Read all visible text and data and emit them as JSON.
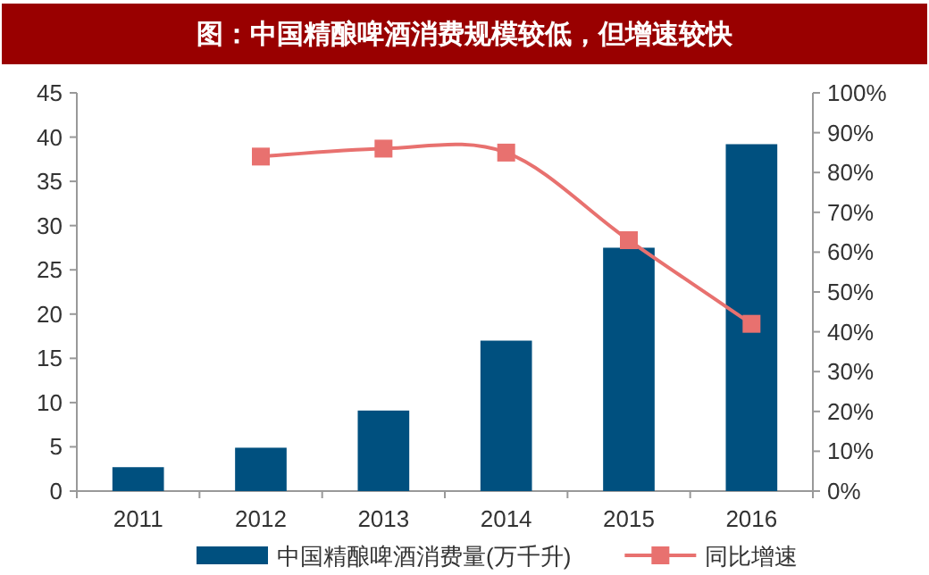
{
  "chart_data": {
    "type": "bar",
    "title": "图：中国精酿啤酒消费规模较低，但增速较快",
    "categories": [
      "2011",
      "2012",
      "2013",
      "2014",
      "2015",
      "2016"
    ],
    "series": [
      {
        "name": "中国精酿啤酒消费量(万千升)",
        "color": "#00507f",
        "values": [
          2.7,
          4.9,
          9.1,
          17.0,
          27.5,
          39.2
        ]
      },
      {
        "name": "同比增速",
        "type": "line",
        "axis": "y2",
        "color": "#e8716f",
        "values": [
          null,
          84,
          86,
          85,
          63,
          42
        ]
      }
    ],
    "ylim": [
      0,
      45
    ],
    "yticks": [
      0,
      5,
      10,
      15,
      20,
      25,
      30,
      35,
      40,
      45
    ],
    "y2lim": [
      0,
      100
    ],
    "y2ticks": [
      {
        "value": 0,
        "label": "0%"
      },
      {
        "value": 10,
        "label": "10%"
      },
      {
        "value": 20,
        "label": "20%"
      },
      {
        "value": 30,
        "label": "30%"
      },
      {
        "value": 40,
        "label": "40%"
      },
      {
        "value": 50,
        "label": "50%"
      },
      {
        "value": 60,
        "label": "60%"
      },
      {
        "value": 70,
        "label": "70%"
      },
      {
        "value": 80,
        "label": "80%"
      },
      {
        "value": 90,
        "label": "90%"
      },
      {
        "value": 100,
        "label": "100%"
      }
    ],
    "marker": "square",
    "legend": "bottom",
    "grid": false
  }
}
